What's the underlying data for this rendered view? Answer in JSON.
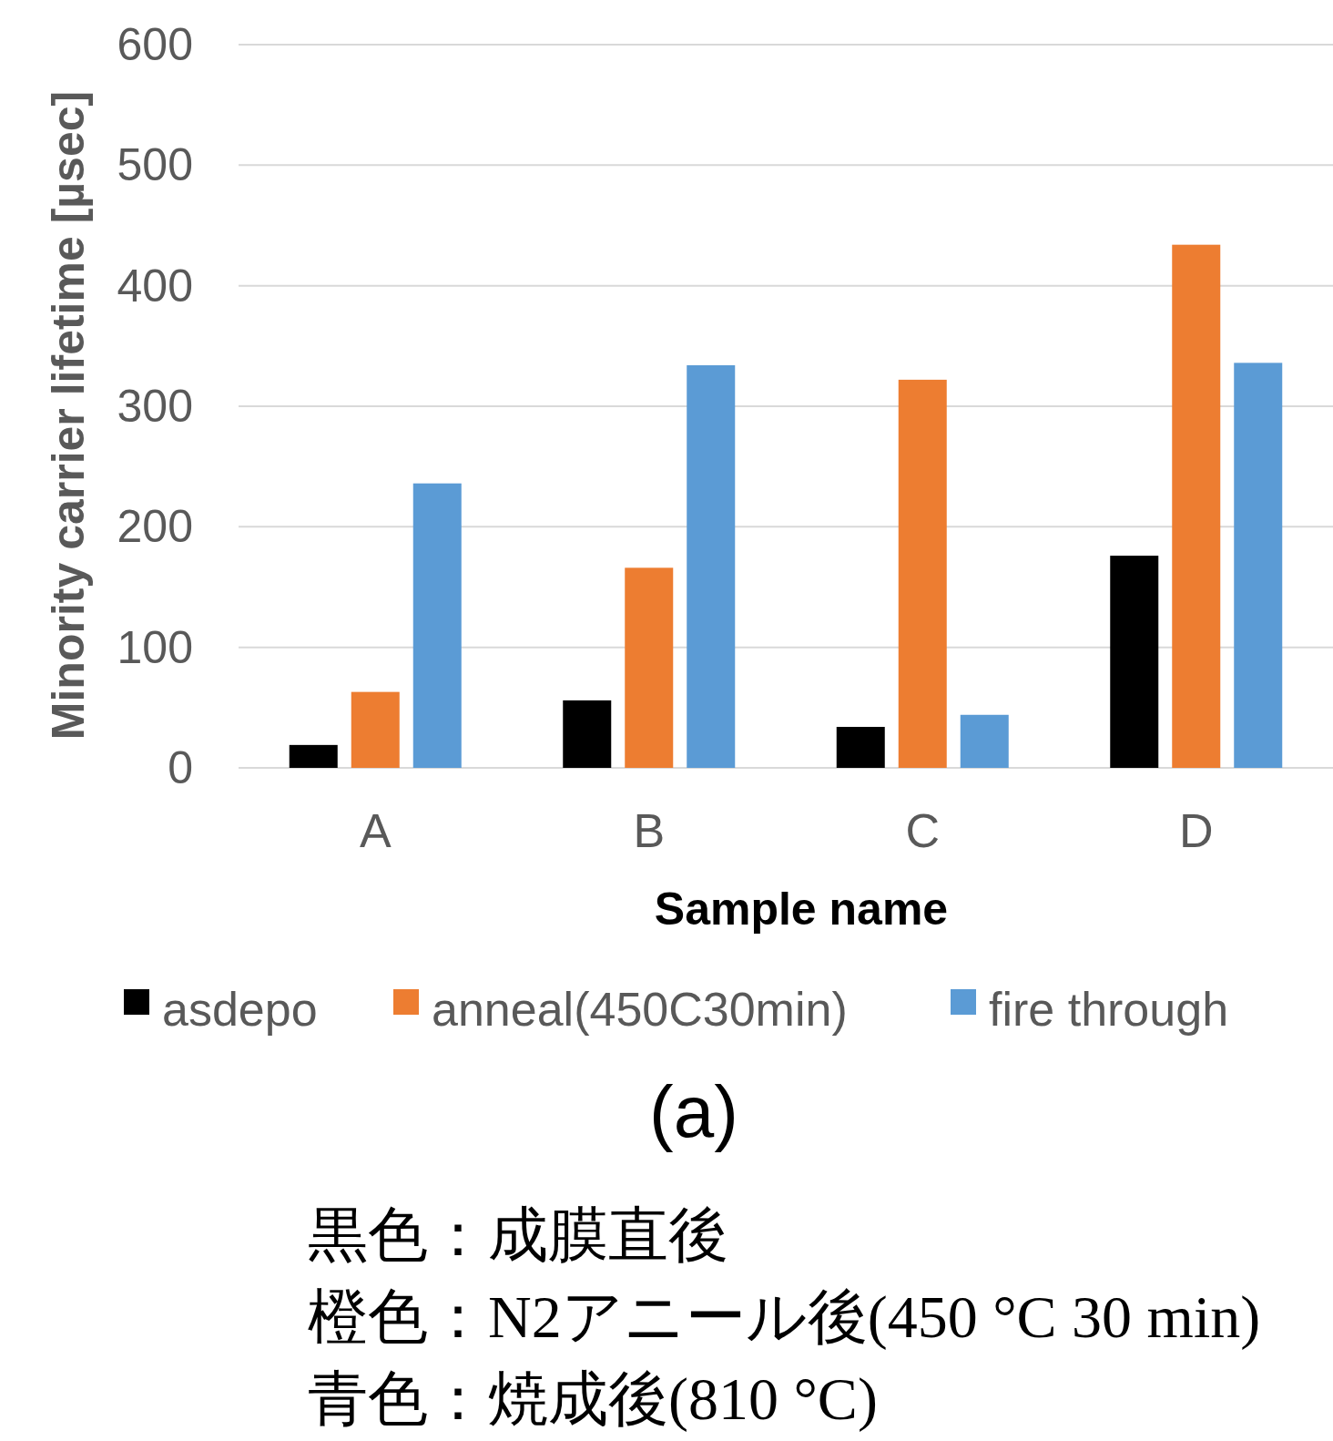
{
  "chart_data": {
    "type": "bar",
    "categories": [
      "A",
      "B",
      "C",
      "D"
    ],
    "series": [
      {
        "name": "asdepo",
        "color": "#000000",
        "values": [
          19,
          56,
          34,
          176
        ]
      },
      {
        "name": "anneal(450C30min)",
        "color": "#ed7d31",
        "values": [
          63,
          166,
          322,
          434
        ]
      },
      {
        "name": "fire through",
        "color": "#5b9bd5",
        "values": [
          236,
          334,
          44,
          336
        ]
      }
    ],
    "xlabel": "Sample name",
    "ylabel": "Minority carrier lifetime [µsec]",
    "ylim": [
      0,
      600
    ],
    "yticks": [
      0,
      100,
      200,
      300,
      400,
      500,
      600
    ],
    "grid": "y",
    "legend": "bottom",
    "annotations": [
      "(a)",
      "黒色：成膜直後",
      "橙色：N2アニール後(450 °C 30 min)",
      "青色：焼成後(810 °C)"
    ]
  }
}
